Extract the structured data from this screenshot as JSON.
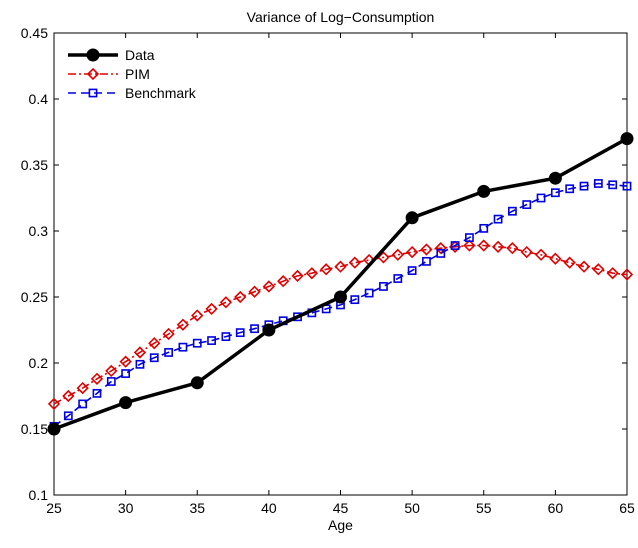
{
  "chart_data": {
    "type": "line",
    "title": "Variance of Log−Consumption",
    "xlabel": "Age",
    "ylabel": "",
    "xlim": [
      25,
      65
    ],
    "ylim": [
      0.1,
      0.45
    ],
    "xticks": [
      25,
      30,
      35,
      40,
      45,
      50,
      55,
      60,
      65
    ],
    "xtick_labels": [
      "25",
      "30",
      "35",
      "40",
      "45",
      "50",
      "55",
      "60",
      "65"
    ],
    "yticks": [
      0.1,
      0.15,
      0.2,
      0.25,
      0.3,
      0.35,
      0.4,
      0.45
    ],
    "ytick_labels": [
      "0.1",
      "0.15",
      "0.2",
      "0.25",
      "0.3",
      "0.35",
      "0.4",
      "0.45"
    ],
    "grid": false,
    "legend_position": "top-left",
    "series": [
      {
        "name": "Data",
        "color": "#000000",
        "marker": "circle",
        "line_style": "solid",
        "x": [
          25,
          30,
          35,
          40,
          45,
          50,
          55,
          60,
          65
        ],
        "y": [
          0.15,
          0.17,
          0.185,
          0.225,
          0.25,
          0.31,
          0.33,
          0.34,
          0.37
        ]
      },
      {
        "name": "PIM",
        "color": "#e00000",
        "marker": "diamond",
        "line_style": "dashdot",
        "x": [
          25,
          26,
          27,
          28,
          29,
          30,
          31,
          32,
          33,
          34,
          35,
          36,
          37,
          38,
          39,
          40,
          41,
          42,
          43,
          44,
          45,
          46,
          47,
          48,
          49,
          50,
          51,
          52,
          53,
          54,
          55,
          56,
          57,
          58,
          59,
          60,
          61,
          62,
          63,
          64,
          65
        ],
        "y": [
          0.169,
          0.175,
          0.181,
          0.188,
          0.194,
          0.201,
          0.208,
          0.215,
          0.222,
          0.229,
          0.236,
          0.241,
          0.246,
          0.25,
          0.254,
          0.258,
          0.262,
          0.266,
          0.268,
          0.271,
          0.273,
          0.276,
          0.278,
          0.28,
          0.282,
          0.284,
          0.286,
          0.287,
          0.288,
          0.289,
          0.289,
          0.288,
          0.287,
          0.284,
          0.282,
          0.279,
          0.276,
          0.273,
          0.271,
          0.268,
          0.267
        ]
      },
      {
        "name": "Benchmark",
        "color": "#0000e0",
        "marker": "square",
        "line_style": "dashed",
        "x": [
          25,
          26,
          27,
          28,
          29,
          30,
          31,
          32,
          33,
          34,
          35,
          36,
          37,
          38,
          39,
          40,
          41,
          42,
          43,
          44,
          45,
          46,
          47,
          48,
          49,
          50,
          51,
          52,
          53,
          54,
          55,
          56,
          57,
          58,
          59,
          60,
          61,
          62,
          63,
          64,
          65
        ],
        "y": [
          0.152,
          0.16,
          0.169,
          0.177,
          0.186,
          0.192,
          0.199,
          0.204,
          0.208,
          0.212,
          0.215,
          0.217,
          0.22,
          0.223,
          0.226,
          0.229,
          0.232,
          0.235,
          0.238,
          0.241,
          0.244,
          0.248,
          0.253,
          0.258,
          0.264,
          0.27,
          0.277,
          0.283,
          0.289,
          0.295,
          0.302,
          0.309,
          0.315,
          0.32,
          0.325,
          0.329,
          0.332,
          0.334,
          0.336,
          0.335,
          0.334
        ]
      }
    ]
  }
}
